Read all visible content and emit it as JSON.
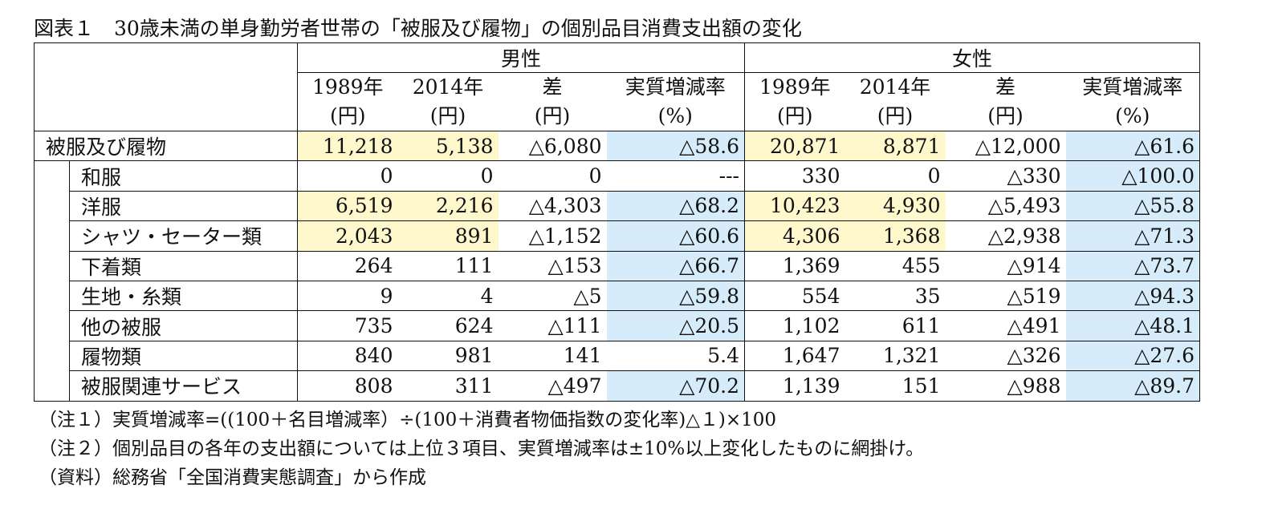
{
  "title": "図表１　30歳未満の単身勤労者世帯の「被服及び履物」の個別品目消費支出額の変化",
  "groups": [
    "男性",
    "女性"
  ],
  "col_headers": [
    [
      "1989年",
      "(円)"
    ],
    [
      "2014年",
      "(円)"
    ],
    [
      "差",
      "(円)"
    ],
    [
      "実質増減率",
      "(%)"
    ],
    [
      "1989年",
      "(円)"
    ],
    [
      "2014年",
      "(円)"
    ],
    [
      "差",
      "(円)"
    ],
    [
      "実質増減率",
      "(%)"
    ]
  ],
  "rows": [
    {
      "label": "被服及び履物",
      "values": [
        "11,218",
        "5,138",
        "△6,080",
        "△58.6",
        "20,871",
        "8,871",
        "△12,000",
        "△61.6"
      ]
    },
    {
      "label": "和服",
      "values": [
        "0",
        "0",
        "0",
        "---",
        "330",
        "0",
        "△330",
        "△100.0"
      ]
    },
    {
      "label": "洋服",
      "values": [
        "6,519",
        "2,216",
        "△4,303",
        "△68.2",
        "10,423",
        "4,930",
        "△5,493",
        "△55.8"
      ]
    },
    {
      "label": "シャツ・セーター類",
      "values": [
        "2,043",
        "891",
        "△1,152",
        "△60.6",
        "4,306",
        "1,368",
        "△2,938",
        "△71.3"
      ]
    },
    {
      "label": "下着類",
      "values": [
        "264",
        "111",
        "△153",
        "△66.7",
        "1,369",
        "455",
        "△914",
        "△73.7"
      ]
    },
    {
      "label": "生地・糸類",
      "values": [
        "9",
        "4",
        "△5",
        "△59.8",
        "554",
        "35",
        "△519",
        "△94.3"
      ]
    },
    {
      "label": "他の被服",
      "values": [
        "735",
        "624",
        "△111",
        "△20.5",
        "1,102",
        "611",
        "△491",
        "△48.1"
      ]
    },
    {
      "label": "履物類",
      "values": [
        "840",
        "981",
        "141",
        "5.4",
        "1,647",
        "1,321",
        "△326",
        "△27.6"
      ]
    },
    {
      "label": "被服関連サービス",
      "values": [
        "808",
        "311",
        "△497",
        "△70.2",
        "1,139",
        "151",
        "△988",
        "△89.7"
      ]
    }
  ],
  "notes": [
    "（注１）実質増減率=((100＋名目増減率）÷(100＋消費者物価指数の変化率)△１)×100",
    "（注２）個別品目の各年の支出額については上位３項目、実質増減率は±10%以上変化したものに網掛け。",
    "（資料）総務省「全国消費実態調査」から作成"
  ],
  "colors": {
    "highlight_yellow": "#fff8cc",
    "highlight_blue": "#d6ecfa"
  }
}
